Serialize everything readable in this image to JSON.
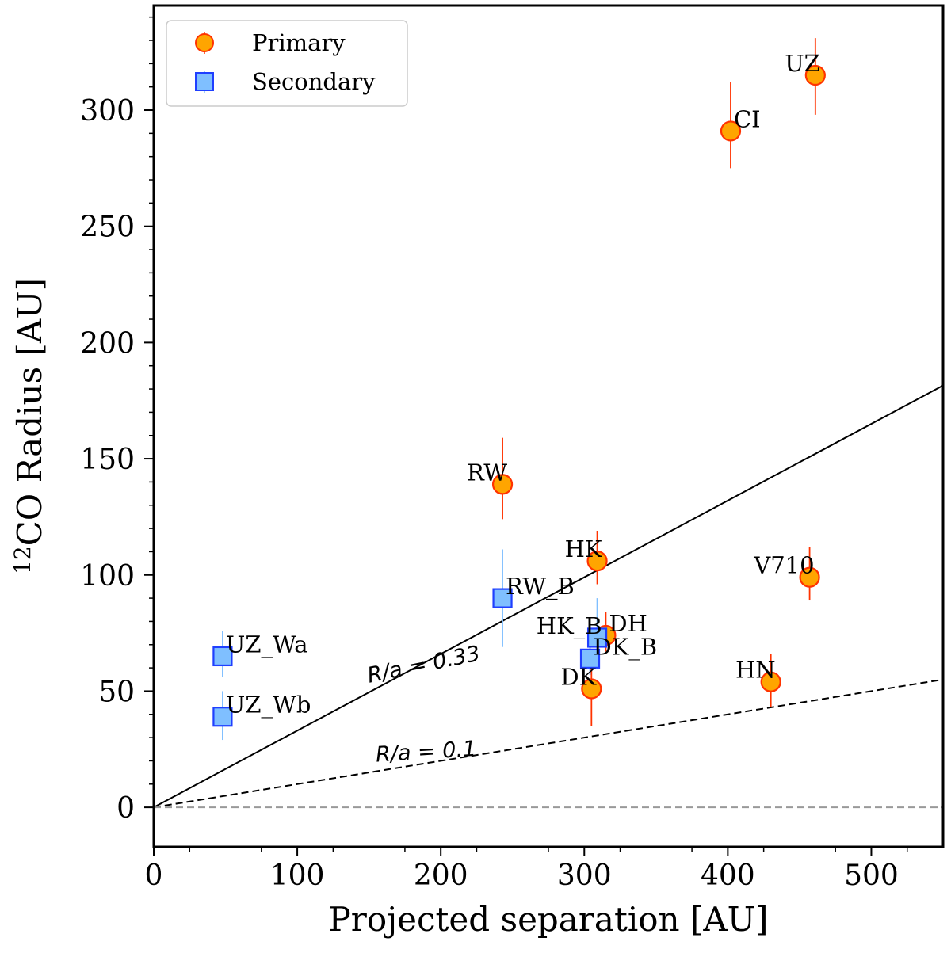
{
  "chart_data": {
    "type": "scatter",
    "xlabel": "Projected separation [AU]",
    "ylabel_superscript": "12",
    "ylabel": "CO Radius [AU]",
    "xlim": [
      0,
      550
    ],
    "ylim": [
      -17,
      345
    ],
    "xticks": [
      0,
      100,
      200,
      300,
      400,
      500
    ],
    "xtick_labels": [
      "0",
      "100",
      "200",
      "300",
      "400",
      "500"
    ],
    "yticks": [
      0,
      50,
      100,
      150,
      200,
      250,
      300
    ],
    "ytick_labels": [
      "0",
      "50",
      "100",
      "150",
      "200",
      "250",
      "300"
    ],
    "legend": {
      "position": "top-left",
      "entries": [
        {
          "label": "Primary",
          "marker": "circle",
          "face_color": "#FFA500",
          "edge_color": "#FF3300"
        },
        {
          "label": "Secondary",
          "marker": "square",
          "face_color": "#7FBFFF",
          "edge_color": "#1F3FFF"
        }
      ]
    },
    "series": [
      {
        "name": "Primary",
        "marker": "circle",
        "face_color": "#FFA500",
        "edge_color": "#FF3300",
        "errorbar_color": "#FF3300",
        "points": [
          {
            "label": "UZ",
            "x": 461,
            "y": 315,
            "yerr_low": 17,
            "yerr_high": 16,
            "label_side": "left"
          },
          {
            "label": "CI",
            "x": 402,
            "y": 291,
            "yerr_low": 16,
            "yerr_high": 21,
            "label_side": "right"
          },
          {
            "label": "RW",
            "x": 243,
            "y": 139,
            "yerr_low": 15,
            "yerr_high": 20,
            "label_side": "left"
          },
          {
            "label": "HK",
            "x": 309,
            "y": 106,
            "yerr_low": 10,
            "yerr_high": 13,
            "label_side": "left"
          },
          {
            "label": "V710",
            "x": 457,
            "y": 99,
            "yerr_low": 10,
            "yerr_high": 13,
            "label_side": "left"
          },
          {
            "label": "DH",
            "x": 315,
            "y": 74,
            "yerr_low": 7,
            "yerr_high": 10,
            "label_side": "right"
          },
          {
            "label": "DK",
            "x": 305,
            "y": 51,
            "yerr_low": 16,
            "yerr_high": 16,
            "label_side": "left"
          },
          {
            "label": "HN",
            "x": 430,
            "y": 54,
            "yerr_low": 11,
            "yerr_high": 12,
            "label_side": "left"
          }
        ]
      },
      {
        "name": "Secondary",
        "marker": "square",
        "face_color": "#7FBFFF",
        "edge_color": "#1F3FFF",
        "errorbar_color": "#7FBFFF",
        "points": [
          {
            "label": "UZ_Wa",
            "x": 48,
            "y": 65,
            "yerr_low": 9,
            "yerr_high": 11,
            "label_side": "right"
          },
          {
            "label": "UZ_Wb",
            "x": 48,
            "y": 39,
            "yerr_low": 10,
            "yerr_high": 11,
            "label_side": "right"
          },
          {
            "label": "RW_B",
            "x": 243,
            "y": 90,
            "yerr_low": 21,
            "yerr_high": 21,
            "label_side": "right"
          },
          {
            "label": "HK_B",
            "x": 309,
            "y": 73,
            "yerr_low": 9,
            "yerr_high": 17,
            "label_side": "left"
          },
          {
            "label": "DK_B",
            "x": 304,
            "y": 64,
            "yerr_low": 7,
            "yerr_high": 9,
            "label_side": "right"
          }
        ]
      }
    ],
    "reference_lines": [
      {
        "name": "R/a = 0.33",
        "label": "R/a = 0.33",
        "slope": 0.33,
        "style": "solid",
        "label_at_x": 150
      },
      {
        "name": "R/a = 0.1",
        "label": "R/a = 0.1",
        "slope": 0.1,
        "style": "dashed",
        "label_at_x": 155
      },
      {
        "name": "zero",
        "label": "",
        "slope": 0,
        "style": "dashed-gray"
      }
    ]
  }
}
